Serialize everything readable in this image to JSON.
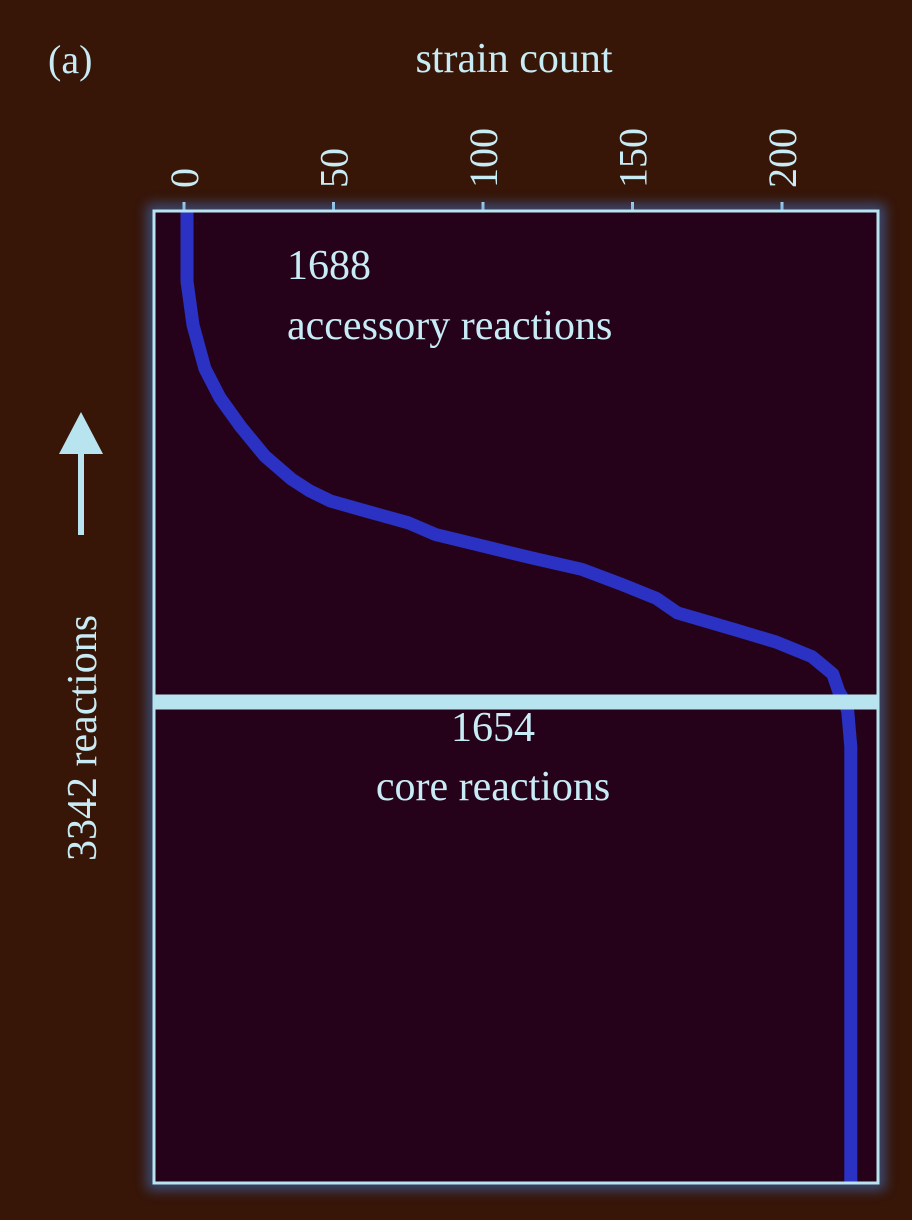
{
  "panel_label": "(a)",
  "colors": {
    "background": "#371507",
    "plot_bg": "#26021a",
    "frame": "#b8e4ef",
    "curve": "#2b31c2",
    "text": "#c8ecf6"
  },
  "chart_data": {
    "type": "line",
    "orientation": "vertical (reactions on y-axis, strain count on x-axis at top)",
    "xlabel": "strain count",
    "ylabel": "3342 reactions",
    "x_ticks": [
      0,
      50,
      100,
      150,
      200
    ],
    "xlim": [
      0,
      232
    ],
    "ylim": [
      0,
      3342
    ],
    "y_direction": "increasing upward (arrow)",
    "split_reaction_index": 1654,
    "annotations": [
      {
        "line1": "1688",
        "line2": "accessory reactions"
      },
      {
        "line1": "1654",
        "line2": "core reactions"
      }
    ],
    "series": [
      {
        "points_reaction_vs_strains": [
          [
            0,
            223
          ],
          [
            1000,
            223
          ],
          [
            1500,
            223
          ],
          [
            1620,
            222
          ],
          [
            1654,
            221
          ],
          [
            1690,
            219
          ],
          [
            1750,
            217
          ],
          [
            1810,
            210
          ],
          [
            1860,
            198
          ],
          [
            1900,
            185
          ],
          [
            1960,
            165
          ],
          [
            2010,
            158
          ],
          [
            2060,
            146
          ],
          [
            2110,
            133
          ],
          [
            2150,
            116
          ],
          [
            2190,
            100
          ],
          [
            2230,
            84
          ],
          [
            2270,
            75
          ],
          [
            2310,
            61
          ],
          [
            2345,
            49
          ],
          [
            2380,
            42
          ],
          [
            2420,
            36
          ],
          [
            2500,
            27
          ],
          [
            2600,
            19
          ],
          [
            2700,
            12
          ],
          [
            2800,
            7
          ],
          [
            2950,
            3
          ],
          [
            3100,
            1
          ],
          [
            3342,
            1
          ]
        ]
      }
    ]
  }
}
